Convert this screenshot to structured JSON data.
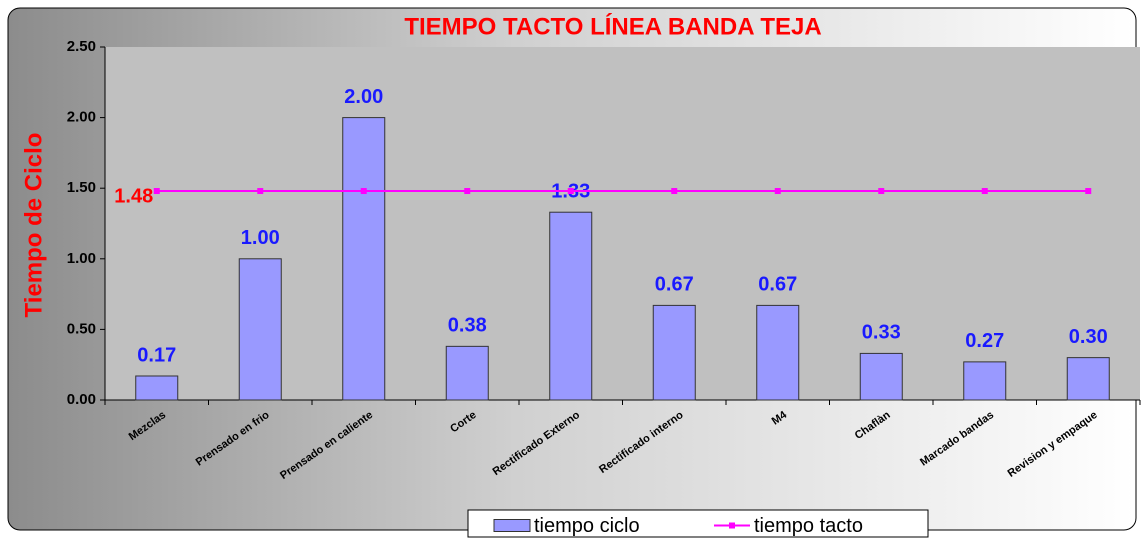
{
  "chart_data": {
    "type": "bar",
    "title": "TIEMPO TACTO LÍNEA BANDA TEJA",
    "y_label": "Tiempo de Ciclo",
    "categories": [
      "Mezclas",
      "Prensado en frio",
      "Prensado en caliente",
      "Corte",
      "Rectificado Externo",
      "Rectificado interno",
      "M4",
      "Chaflàn",
      "Marcado bandas",
      "Revision y empaque"
    ],
    "series": [
      {
        "name": "tiempo ciclo",
        "type": "bar",
        "color": "#9999ff",
        "values": [
          0.17,
          1.0,
          2.0,
          0.38,
          1.33,
          0.67,
          0.67,
          0.33,
          0.27,
          0.3
        ],
        "value_labels": [
          "0.17",
          "1.00",
          "2.00",
          "0.38",
          "1.33",
          "0.67",
          "0.67",
          "0.33",
          "0.27",
          "0.30"
        ]
      },
      {
        "name": "tiempo tacto",
        "type": "line",
        "color": "#ff00ff",
        "values": [
          1.48,
          1.48,
          1.48,
          1.48,
          1.48,
          1.48,
          1.48,
          1.48,
          1.48,
          1.48
        ],
        "value_labels": [
          "1.48",
          null,
          null,
          null,
          null,
          null,
          null,
          null,
          null,
          null
        ]
      }
    ],
    "ylim": [
      0,
      2.5
    ],
    "yticks": [
      {
        "value": 0,
        "label": "0.00"
      },
      {
        "value": 0.5,
        "label": "0.50"
      },
      {
        "value": 1,
        "label": "1.00"
      },
      {
        "value": 1.5,
        "label": "1.50"
      },
      {
        "value": 2,
        "label": "2.00"
      },
      {
        "value": 2.5,
        "label": "2.50"
      }
    ],
    "grid": false,
    "legend": "bottom"
  }
}
